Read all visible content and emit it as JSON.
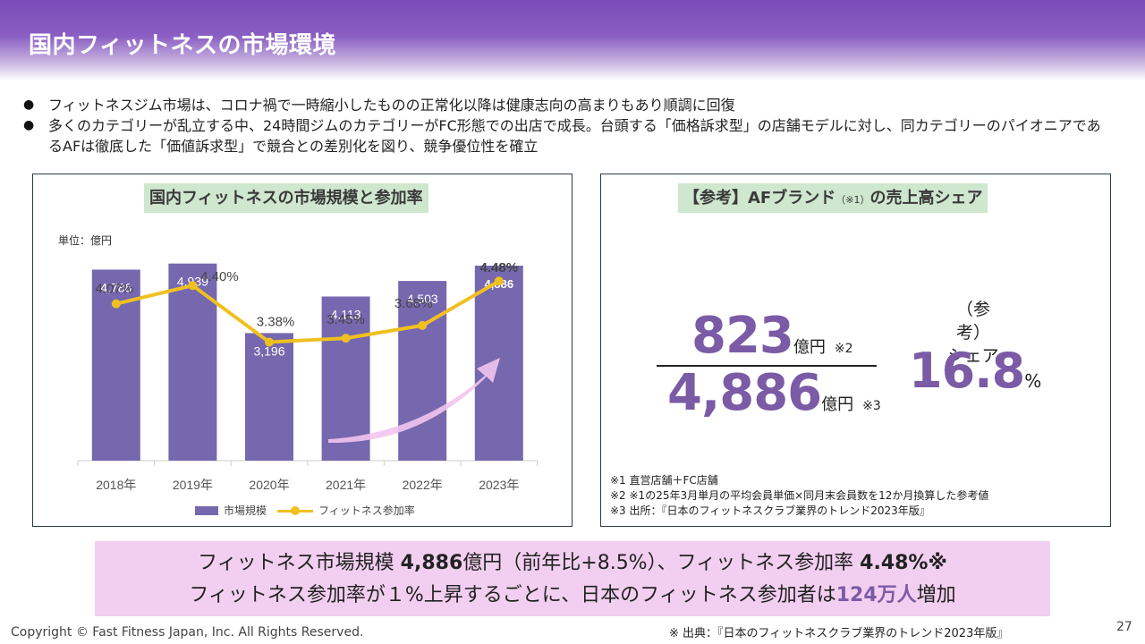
{
  "header": {
    "title": "国内フィットネスの市場環境"
  },
  "bullets": [
    "フィットネスジム市場は、コロナ禍で一時縮小したものの正常化以降は健康志向の高まりもあり順調に回復",
    "多くのカテゴリーが乱立する中、24時間ジムのカテゴリーがFC形態での出店で成長。台頭する「価格訴求型」の店舗モデルに対し、同カテゴリーのパイオニアであるAFは徹底した「価値訴求型」で競合との差別化を図り、競争優位性を確立"
  ],
  "left_panel": {
    "title": "国内フィットネスの市場規模と参加率",
    "unit_label": "単位：億円"
  },
  "chart_data": {
    "type": "bar",
    "title": "国内フィットネスの市場規模と参加率",
    "categories": [
      "2018年",
      "2019年",
      "2020年",
      "2021年",
      "2022年",
      "2023年"
    ],
    "series": [
      {
        "name": "市場規模",
        "kind": "bar",
        "values": [
          4786,
          4939,
          3196,
          4113,
          4503,
          4886
        ],
        "labels": [
          "4,786",
          "4,939",
          "3,196",
          "4,113",
          "4,503",
          "4,886"
        ],
        "color": "#7568ae"
      },
      {
        "name": "フィットネス参加率",
        "kind": "line",
        "values": [
          4.07,
          4.4,
          3.38,
          3.45,
          3.68,
          4.48
        ],
        "labels": [
          "4.07%",
          "4.40%",
          "3.38%",
          "3.45%",
          "3.68%",
          "4.48%"
        ],
        "color": "#f0c020"
      }
    ],
    "ylim": [
      0,
      6500
    ],
    "ylim_secondary": [
      0,
      5.0
    ],
    "legend": "bottom",
    "grid": false,
    "arrow_color": "#f2c4ee"
  },
  "right_panel": {
    "title_main_1": "【参考】AFブランド",
    "title_note": "（※1）",
    "title_main_2": "の売上高シェア",
    "numerator": "823",
    "numerator_unit": "億円",
    "numerator_note": "※2",
    "denominator": "4,886",
    "denominator_unit": "億円",
    "denominator_note": "※3",
    "ref_label_1": "（参考）",
    "ref_label_2": "シェア",
    "share_value": "16.8",
    "share_unit": "%",
    "notes": [
      "※1 直営店舗＋FC店舗",
      "※2 ※1の25年3月単月の平均会員単価×同月末会員数を12か月換算した参考値",
      "※3 出所：『日本のフィットネスクラブ業界のトレンド2023年版』"
    ]
  },
  "callout": {
    "l1_a": "フィットネス市場規模 ",
    "l1_b": "4,886",
    "l1_c": "億円（前年比+8.5%）、フィットネス参加率 ",
    "l1_d": "4.48%※",
    "l2_a": "フィットネス参加率が１%上昇するごとに、日本のフィットネス参加者は",
    "l2_b": "124万人",
    "l2_c": "増加"
  },
  "footer": {
    "copyright": "Copyright © Fast Fitness Japan, Inc. All Rights Reserved.",
    "source": "※ 出典：『日本のフィットネスクラブ業界のトレンド2023年版』",
    "page": "27"
  }
}
